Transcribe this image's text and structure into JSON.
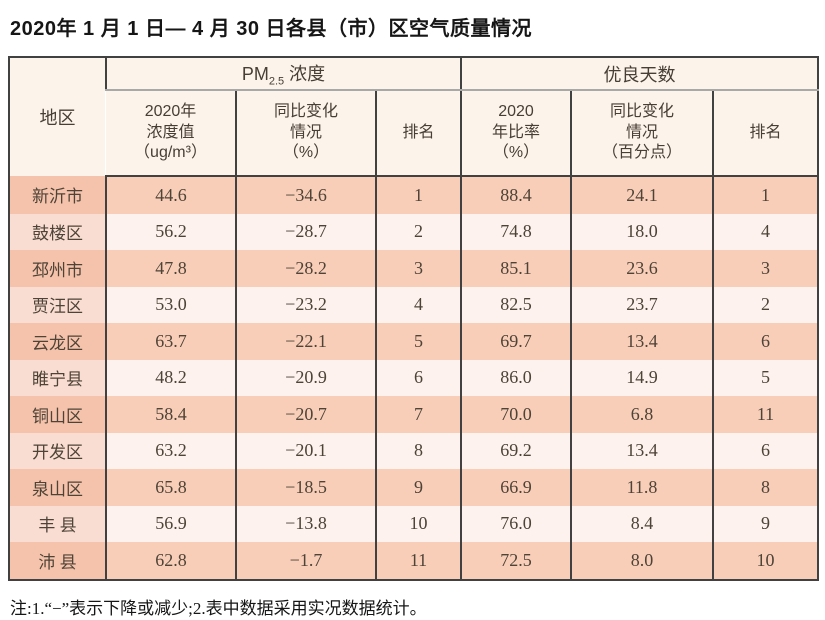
{
  "title": "2020年 1 月 1 日— 4 月 30 日各县（市）区空气质量情况",
  "table": {
    "region_header": "地区",
    "pm_group": {
      "base": "PM",
      "sub": "2.5",
      "rest": " 浓度"
    },
    "good_group": "优良天数",
    "sub_headers": [
      "2020年\n浓度值\n（ug/m³）",
      "同比变化\n情况\n（%）",
      "排名",
      "2020\n年比率\n（%）",
      "同比变化\n情况\n（百分点）",
      "排名"
    ],
    "rows": [
      {
        "region": "新沂市",
        "pm_value": "44.6",
        "pm_change": "−34.6",
        "pm_rank": "1",
        "good_rate": "88.4",
        "good_change": "24.1",
        "good_rank": "1"
      },
      {
        "region": "鼓楼区",
        "pm_value": "56.2",
        "pm_change": "−28.7",
        "pm_rank": "2",
        "good_rate": "74.8",
        "good_change": "18.0",
        "good_rank": "4"
      },
      {
        "region": "邳州市",
        "pm_value": "47.8",
        "pm_change": "−28.2",
        "pm_rank": "3",
        "good_rate": "85.1",
        "good_change": "23.6",
        "good_rank": "3"
      },
      {
        "region": "贾汪区",
        "pm_value": "53.0",
        "pm_change": "−23.2",
        "pm_rank": "4",
        "good_rate": "82.5",
        "good_change": "23.7",
        "good_rank": "2"
      },
      {
        "region": "云龙区",
        "pm_value": "63.7",
        "pm_change": "−22.1",
        "pm_rank": "5",
        "good_rate": "69.7",
        "good_change": "13.4",
        "good_rank": "6"
      },
      {
        "region": "睢宁县",
        "pm_value": "48.2",
        "pm_change": "−20.9",
        "pm_rank": "6",
        "good_rate": "86.0",
        "good_change": "14.9",
        "good_rank": "5"
      },
      {
        "region": "铜山区",
        "pm_value": "58.4",
        "pm_change": "−20.7",
        "pm_rank": "7",
        "good_rate": "70.0",
        "good_change": "6.8",
        "good_rank": "11"
      },
      {
        "region": "开发区",
        "pm_value": "63.2",
        "pm_change": "−20.1",
        "pm_rank": "8",
        "good_rate": "69.2",
        "good_change": "13.4",
        "good_rank": "6"
      },
      {
        "region": "泉山区",
        "pm_value": "65.8",
        "pm_change": "−18.5",
        "pm_rank": "9",
        "good_rate": "66.9",
        "good_change": "11.8",
        "good_rank": "8"
      },
      {
        "region": "丰 县",
        "pm_value": "56.9",
        "pm_change": "−13.8",
        "pm_rank": "10",
        "good_rate": "76.0",
        "good_change": "8.4",
        "good_rank": "9"
      },
      {
        "region": "沛 县",
        "pm_value": "62.8",
        "pm_change": "−1.7",
        "pm_rank": "11",
        "good_rate": "72.5",
        "good_change": "8.0",
        "good_rank": "10"
      }
    ]
  },
  "note": "注:1.“−”表示下降或减少;2.表中数据采用实况数据统计。",
  "colors": {
    "row_odd": "#f8ceb8",
    "row_even": "#fdf2ed",
    "region_odd": "#f5c3ab",
    "region_even": "#f9ddd2",
    "header_bg": "#fcf3ea",
    "border": "#414141"
  }
}
